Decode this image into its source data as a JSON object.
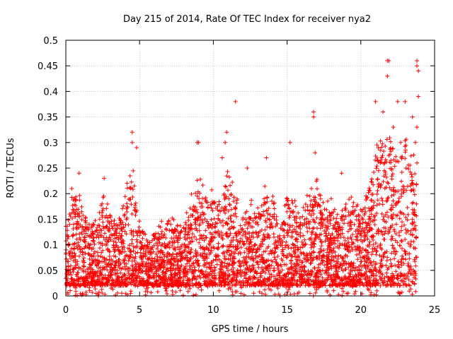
{
  "chart_data": {
    "type": "scatter",
    "title": "Day 215 of 2014, Rate Of TEC Index for receiver nya2",
    "xlabel": "GPS time / hours",
    "ylabel": "ROTI / TECUs",
    "xlim": [
      0,
      25
    ],
    "ylim": [
      0,
      0.5
    ],
    "xticks": [
      0,
      5,
      10,
      15,
      20,
      25
    ],
    "xtick_labels": [
      "0",
      "5",
      "10",
      "15",
      "20",
      "25"
    ],
    "yticks": [
      0,
      0.05,
      0.1,
      0.15,
      0.2,
      0.25,
      0.3,
      0.35,
      0.4,
      0.45,
      0.5
    ],
    "ytick_labels": [
      "0",
      "0.05",
      "0.1",
      "0.15",
      "0.2",
      "0.25",
      "0.3",
      "0.35",
      "0.4",
      "0.45",
      "0.5"
    ],
    "grid": true,
    "marker": "+",
    "color": "#ff0000",
    "series": [
      {
        "name": "ROTI",
        "envelope_x": [
          0,
          0.5,
          1,
          1.5,
          2,
          2.5,
          3,
          3.5,
          4,
          4.5,
          5,
          5.5,
          6,
          6.5,
          7,
          7.5,
          8,
          8.5,
          9,
          9.5,
          10,
          10.5,
          11,
          11.5,
          12,
          12.5,
          13,
          13.5,
          14,
          14.5,
          15,
          15.5,
          16,
          16.5,
          17,
          17.5,
          18,
          18.5,
          19,
          19.5,
          20,
          20.5,
          21,
          21.5,
          22,
          22.5,
          23,
          23.5,
          23.8
        ],
        "envelope_y": [
          0.14,
          0.22,
          0.2,
          0.16,
          0.15,
          0.22,
          0.18,
          0.15,
          0.22,
          0.28,
          0.16,
          0.12,
          0.13,
          0.15,
          0.16,
          0.15,
          0.15,
          0.2,
          0.25,
          0.2,
          0.22,
          0.18,
          0.26,
          0.2,
          0.18,
          0.2,
          0.18,
          0.22,
          0.2,
          0.16,
          0.22,
          0.2,
          0.18,
          0.22,
          0.24,
          0.18,
          0.2,
          0.16,
          0.2,
          0.22,
          0.2,
          0.22,
          0.3,
          0.32,
          0.35,
          0.3,
          0.34,
          0.3,
          0.28
        ],
        "outliers": [
          [
            0.4,
            0.21
          ],
          [
            0.9,
            0.24
          ],
          [
            2.6,
            0.23
          ],
          [
            4.5,
            0.32
          ],
          [
            4.5,
            0.3
          ],
          [
            4.8,
            0.29
          ],
          [
            8.9,
            0.3
          ],
          [
            9.0,
            0.3
          ],
          [
            10.9,
            0.32
          ],
          [
            10.8,
            0.3
          ],
          [
            10.6,
            0.27
          ],
          [
            11.5,
            0.38
          ],
          [
            12.3,
            0.25
          ],
          [
            13.6,
            0.27
          ],
          [
            15.2,
            0.3
          ],
          [
            16.8,
            0.36
          ],
          [
            16.8,
            0.35
          ],
          [
            16.9,
            0.28
          ],
          [
            18.7,
            0.24
          ],
          [
            21.0,
            0.38
          ],
          [
            21.5,
            0.36
          ],
          [
            21.8,
            0.46
          ],
          [
            21.9,
            0.46
          ],
          [
            21.8,
            0.43
          ],
          [
            22.2,
            0.33
          ],
          [
            22.5,
            0.38
          ],
          [
            23.0,
            0.38
          ],
          [
            23.5,
            0.35
          ],
          [
            23.8,
            0.46
          ],
          [
            23.8,
            0.45
          ],
          [
            23.9,
            0.44
          ],
          [
            23.9,
            0.39
          ],
          [
            23.8,
            0.33
          ],
          [
            23.7,
            0.3
          ],
          [
            23.8,
            0.26
          ],
          [
            22.7,
            0.3
          ]
        ]
      }
    ]
  }
}
